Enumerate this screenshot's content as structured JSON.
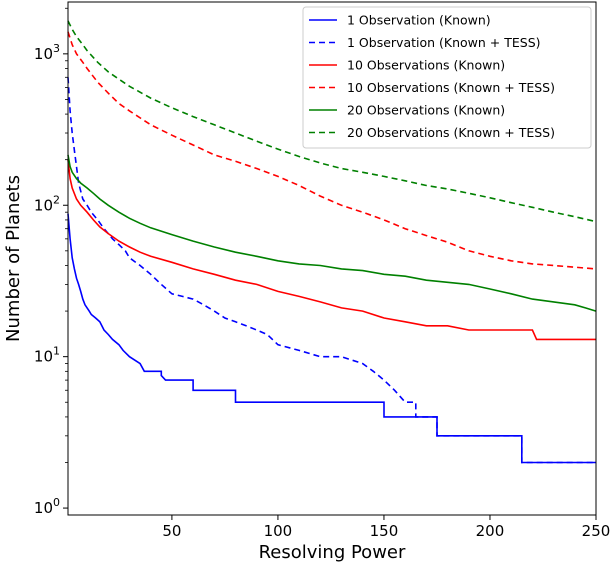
{
  "chart_data": {
    "type": "line",
    "title": "",
    "xlabel": "Resolving Power",
    "ylabel": "Number of Planets",
    "xlim": [
      1,
      250
    ],
    "ylim": [
      0.9,
      2200
    ],
    "yscale": "log",
    "grid": false,
    "legend_position": "top-right",
    "x_ticks": [
      {
        "value": 50,
        "label": "50"
      },
      {
        "value": 100,
        "label": "100"
      },
      {
        "value": 150,
        "label": "150"
      },
      {
        "value": 200,
        "label": "200"
      },
      {
        "value": 250,
        "label": "250"
      }
    ],
    "y_ticks": [
      {
        "value": 1,
        "base": "10",
        "exp": "0"
      },
      {
        "value": 10,
        "base": "10",
        "exp": "1"
      },
      {
        "value": 100,
        "base": "10",
        "exp": "2"
      },
      {
        "value": 1000,
        "base": "10",
        "exp": "3"
      }
    ],
    "series": [
      {
        "name": "1 Observation (Known)",
        "color": "#0000ff",
        "dash": "solid",
        "points": [
          [
            1,
            88
          ],
          [
            2,
            60
          ],
          [
            3,
            45
          ],
          [
            4,
            38
          ],
          [
            5,
            33
          ],
          [
            6,
            30
          ],
          [
            7,
            27
          ],
          [
            8,
            24
          ],
          [
            9,
            22
          ],
          [
            10,
            21
          ],
          [
            11,
            20
          ],
          [
            12,
            19
          ],
          [
            14,
            18
          ],
          [
            16,
            17
          ],
          [
            18,
            15
          ],
          [
            20,
            14
          ],
          [
            22,
            13
          ],
          [
            25,
            12
          ],
          [
            27,
            11
          ],
          [
            30,
            10
          ],
          [
            35,
            9
          ],
          [
            37,
            8
          ],
          [
            45,
            8
          ],
          [
            45,
            7.5
          ],
          [
            47,
            7
          ],
          [
            60,
            7
          ],
          [
            60,
            6
          ],
          [
            80,
            6
          ],
          [
            80,
            5
          ],
          [
            150,
            5
          ],
          [
            150,
            4
          ],
          [
            175,
            4
          ],
          [
            175,
            3
          ],
          [
            215,
            3
          ],
          [
            215,
            2
          ],
          [
            250,
            2
          ]
        ]
      },
      {
        "name": "1 Observation (Known + TESS)",
        "color": "#0000ff",
        "dash": "dashed",
        "points": [
          [
            1,
            700
          ],
          [
            2,
            420
          ],
          [
            3,
            300
          ],
          [
            4,
            230
          ],
          [
            5,
            180
          ],
          [
            6,
            140
          ],
          [
            8,
            110
          ],
          [
            10,
            100
          ],
          [
            12,
            90
          ],
          [
            15,
            80
          ],
          [
            18,
            70
          ],
          [
            20,
            65
          ],
          [
            22,
            60
          ],
          [
            25,
            55
          ],
          [
            28,
            50
          ],
          [
            30,
            45
          ],
          [
            35,
            40
          ],
          [
            40,
            35
          ],
          [
            45,
            30
          ],
          [
            50,
            26
          ],
          [
            55,
            25
          ],
          [
            60,
            24
          ],
          [
            65,
            22
          ],
          [
            70,
            20
          ],
          [
            75,
            18
          ],
          [
            80,
            17
          ],
          [
            85,
            16
          ],
          [
            90,
            15
          ],
          [
            95,
            14
          ],
          [
            100,
            12
          ],
          [
            110,
            11
          ],
          [
            120,
            10
          ],
          [
            130,
            10
          ],
          [
            140,
            9
          ],
          [
            145,
            8
          ],
          [
            150,
            7
          ],
          [
            155,
            6
          ],
          [
            160,
            5
          ],
          [
            165,
            5
          ],
          [
            165,
            4
          ],
          [
            175,
            4
          ],
          [
            175,
            3
          ],
          [
            215,
            3
          ],
          [
            215,
            2
          ],
          [
            250,
            2
          ]
        ]
      },
      {
        "name": "10 Observations (Known)",
        "color": "#ff0000",
        "dash": "solid",
        "points": [
          [
            1,
            200
          ],
          [
            2,
            150
          ],
          [
            3,
            130
          ],
          [
            5,
            110
          ],
          [
            7,
            100
          ],
          [
            10,
            90
          ],
          [
            13,
            80
          ],
          [
            16,
            72
          ],
          [
            20,
            65
          ],
          [
            25,
            58
          ],
          [
            30,
            53
          ],
          [
            35,
            49
          ],
          [
            40,
            46
          ],
          [
            50,
            42
          ],
          [
            60,
            38
          ],
          [
            70,
            35
          ],
          [
            80,
            32
          ],
          [
            90,
            30
          ],
          [
            100,
            27
          ],
          [
            110,
            25
          ],
          [
            120,
            23
          ],
          [
            130,
            21
          ],
          [
            140,
            20
          ],
          [
            150,
            18
          ],
          [
            160,
            17
          ],
          [
            170,
            16
          ],
          [
            180,
            16
          ],
          [
            190,
            15
          ],
          [
            200,
            15
          ],
          [
            210,
            15
          ],
          [
            220,
            15
          ],
          [
            222,
            13
          ],
          [
            250,
            13
          ]
        ]
      },
      {
        "name": "10 Observations (Known + TESS)",
        "color": "#ff0000",
        "dash": "dashed",
        "points": [
          [
            1,
            1400
          ],
          [
            3,
            1150
          ],
          [
            5,
            1000
          ],
          [
            8,
            880
          ],
          [
            10,
            800
          ],
          [
            15,
            650
          ],
          [
            20,
            550
          ],
          [
            25,
            470
          ],
          [
            30,
            420
          ],
          [
            40,
            340
          ],
          [
            50,
            290
          ],
          [
            60,
            250
          ],
          [
            70,
            215
          ],
          [
            80,
            195
          ],
          [
            90,
            175
          ],
          [
            100,
            155
          ],
          [
            110,
            135
          ],
          [
            120,
            115
          ],
          [
            130,
            100
          ],
          [
            140,
            90
          ],
          [
            150,
            80
          ],
          [
            160,
            70
          ],
          [
            170,
            63
          ],
          [
            180,
            57
          ],
          [
            190,
            50
          ],
          [
            200,
            46
          ],
          [
            210,
            43
          ],
          [
            220,
            41
          ],
          [
            230,
            40
          ],
          [
            240,
            39
          ],
          [
            250,
            38
          ]
        ]
      },
      {
        "name": "20 Observations (Known)",
        "color": "#008000",
        "dash": "solid",
        "points": [
          [
            1,
            215
          ],
          [
            2,
            180
          ],
          [
            3,
            165
          ],
          [
            5,
            150
          ],
          [
            7,
            140
          ],
          [
            10,
            130
          ],
          [
            13,
            120
          ],
          [
            16,
            110
          ],
          [
            20,
            100
          ],
          [
            25,
            90
          ],
          [
            30,
            82
          ],
          [
            35,
            76
          ],
          [
            40,
            71
          ],
          [
            50,
            64
          ],
          [
            60,
            58
          ],
          [
            70,
            53
          ],
          [
            80,
            49
          ],
          [
            90,
            46
          ],
          [
            100,
            43
          ],
          [
            110,
            41
          ],
          [
            120,
            40
          ],
          [
            130,
            38
          ],
          [
            140,
            37
          ],
          [
            150,
            35
          ],
          [
            160,
            34
          ],
          [
            170,
            32
          ],
          [
            180,
            31
          ],
          [
            190,
            30
          ],
          [
            200,
            28
          ],
          [
            210,
            26
          ],
          [
            220,
            24
          ],
          [
            230,
            23
          ],
          [
            240,
            22
          ],
          [
            245,
            21
          ],
          [
            250,
            20
          ]
        ]
      },
      {
        "name": "20 Observations (Known + TESS)",
        "color": "#008000",
        "dash": "dashed",
        "points": [
          [
            1,
            1650
          ],
          [
            3,
            1450
          ],
          [
            5,
            1300
          ],
          [
            8,
            1150
          ],
          [
            10,
            1050
          ],
          [
            15,
            880
          ],
          [
            20,
            760
          ],
          [
            25,
            680
          ],
          [
            30,
            610
          ],
          [
            40,
            510
          ],
          [
            50,
            440
          ],
          [
            60,
            385
          ],
          [
            70,
            340
          ],
          [
            80,
            300
          ],
          [
            90,
            265
          ],
          [
            100,
            235
          ],
          [
            110,
            210
          ],
          [
            120,
            190
          ],
          [
            130,
            175
          ],
          [
            140,
            165
          ],
          [
            150,
            155
          ],
          [
            160,
            145
          ],
          [
            170,
            135
          ],
          [
            180,
            128
          ],
          [
            190,
            120
          ],
          [
            200,
            112
          ],
          [
            210,
            104
          ],
          [
            220,
            97
          ],
          [
            230,
            90
          ],
          [
            240,
            84
          ],
          [
            250,
            78
          ]
        ]
      }
    ]
  }
}
